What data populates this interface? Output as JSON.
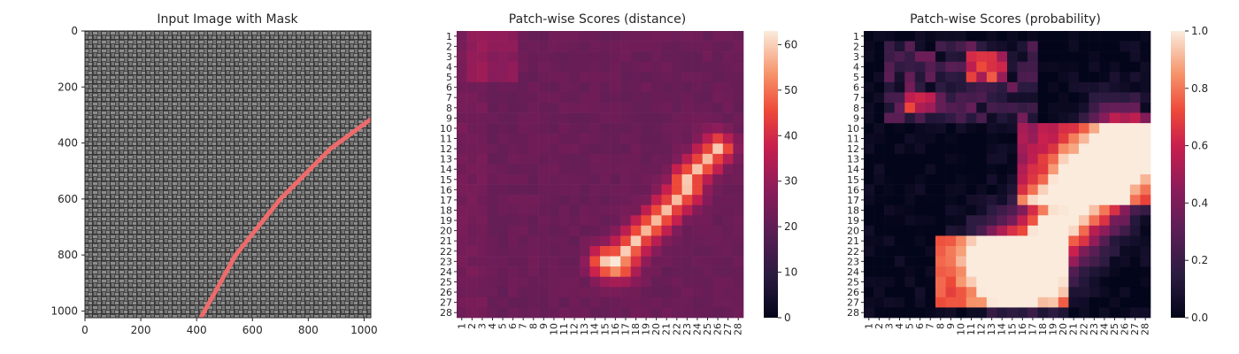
{
  "figure": {
    "panels": [
      {
        "title": "Input Image with Mask"
      },
      {
        "title": "Patch-wise Scores (distance)"
      },
      {
        "title": "Patch-wise Scores (probability)"
      }
    ]
  },
  "chart_data": [
    {
      "type": "image",
      "title": "Input Image with Mask",
      "xlabel": "",
      "ylabel": "",
      "xlim": [
        0,
        1024
      ],
      "ylim": [
        1024,
        0
      ],
      "x_ticks": [
        0,
        200,
        400,
        600,
        800,
        1000
      ],
      "y_ticks": [
        0,
        200,
        400,
        600,
        800,
        1000
      ],
      "description_visual": "grey woven fabric texture",
      "mask_color": "#f56b6b",
      "mask_line": {
        "x": [
          415,
          540,
          700,
          880,
          1020
        ],
        "y": [
          1024,
          800,
          600,
          420,
          318
        ]
      }
    },
    {
      "type": "heatmap",
      "title": "Patch-wise Scores (distance)",
      "xlabel": "",
      "ylabel": "",
      "rows": [
        "1",
        "2",
        "3",
        "4",
        "5",
        "6",
        "7",
        "8",
        "9",
        "10",
        "11",
        "12",
        "13",
        "14",
        "15",
        "16",
        "17",
        "18",
        "19",
        "20",
        "21",
        "22",
        "23",
        "24",
        "25",
        "26",
        "27",
        "28"
      ],
      "cols": [
        "1",
        "2",
        "3",
        "4",
        "5",
        "6",
        "7",
        "8",
        "9",
        "10",
        "11",
        "12",
        "13",
        "14",
        "15",
        "16",
        "17",
        "18",
        "19",
        "20",
        "21",
        "22",
        "23",
        "24",
        "25",
        "26",
        "27",
        "28"
      ],
      "colorbar": {
        "min": 0,
        "max": 63,
        "ticks": [
          0,
          10,
          20,
          30,
          40,
          50,
          60
        ]
      },
      "colormap": "rocket",
      "base_level": 22,
      "defect_band": [
        [
          23,
          15
        ],
        [
          23,
          16
        ],
        [
          22,
          17
        ],
        [
          21,
          18
        ],
        [
          20,
          19
        ],
        [
          19,
          20
        ],
        [
          18,
          21
        ],
        [
          17,
          22
        ],
        [
          16,
          23
        ],
        [
          15,
          23
        ],
        [
          14,
          24
        ],
        [
          13,
          25
        ],
        [
          12,
          26
        ]
      ],
      "peak": {
        "row": 24,
        "col": 17,
        "value": 63
      }
    },
    {
      "type": "heatmap",
      "title": "Patch-wise Scores (probability)",
      "xlabel": "",
      "ylabel": "",
      "rows": [
        "1",
        "2",
        "3",
        "4",
        "5",
        "6",
        "7",
        "8",
        "9",
        "10",
        "11",
        "12",
        "13",
        "14",
        "15",
        "16",
        "17",
        "18",
        "19",
        "20",
        "21",
        "22",
        "23",
        "24",
        "25",
        "26",
        "27",
        "28"
      ],
      "cols": [
        "1",
        "2",
        "3",
        "4",
        "5",
        "6",
        "7",
        "8",
        "9",
        "10",
        "11",
        "12",
        "13",
        "14",
        "15",
        "16",
        "17",
        "18",
        "19",
        "20",
        "21",
        "22",
        "23",
        "24",
        "25",
        "26",
        "27",
        "28"
      ],
      "colorbar": {
        "min": 0.0,
        "max": 1.0,
        "ticks": [
          "0.0",
          "0.2",
          "0.4",
          "0.6",
          "0.8",
          "1.0"
        ]
      },
      "colormap": "rocket"
    }
  ]
}
